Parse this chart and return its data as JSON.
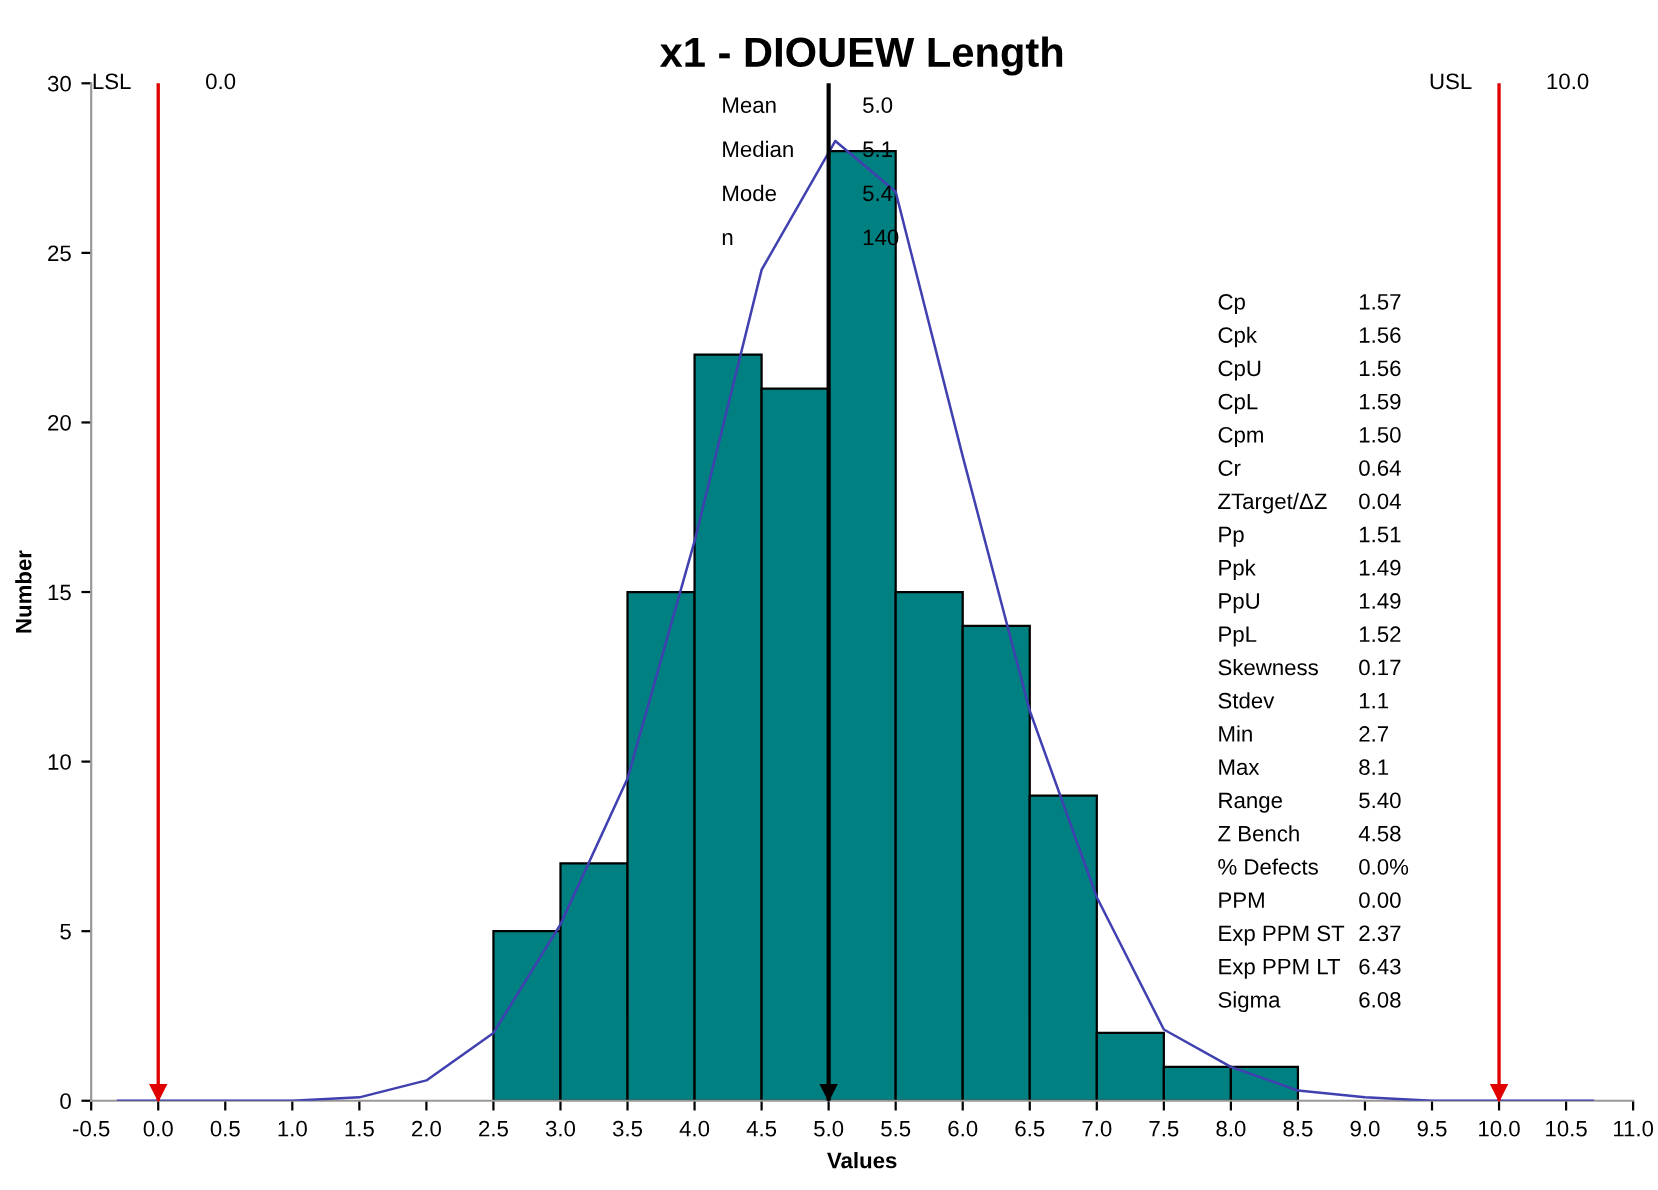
{
  "chart_data": {
    "type": "histogram",
    "title": "x1 - DIOUEW Length",
    "xlabel": "Values",
    "ylabel": "Number",
    "bins": [
      2.5,
      3.0,
      3.5,
      4.0,
      4.5,
      5.0,
      5.5,
      6.0,
      6.5,
      7.0,
      7.5,
      8.0,
      8.5
    ],
    "series": [
      {
        "color": "#008080",
        "values": [
          5,
          7,
          15,
          22,
          21,
          28,
          15,
          14,
          9,
          2,
          1,
          1
        ]
      },
      {
        "type": "line",
        "color": "#4040b0",
        "x": [
          -0.3,
          0.5,
          1.0,
          1.5,
          2.0,
          2.5,
          3.0,
          3.5,
          4.0,
          4.5,
          5.05,
          5.5,
          6.0,
          6.5,
          7.0,
          7.5,
          8.0,
          8.5,
          9.0,
          9.5,
          10.0,
          10.7
        ],
        "values": [
          0,
          0,
          0,
          0.1,
          0.6,
          2.0,
          5.2,
          9.5,
          16.5,
          24.5,
          28.3,
          26.8,
          19,
          11.5,
          6.0,
          2.1,
          1.0,
          0.3,
          0.1,
          0,
          0,
          0
        ]
      }
    ],
    "ref_lines": [
      {
        "axis": "x",
        "value": 0.0,
        "label": "LSL",
        "color": "#e00000"
      },
      {
        "axis": "x",
        "value": 10.0,
        "label": "USL",
        "color": "#e00000"
      },
      {
        "axis": "x",
        "value": 5.0,
        "color": "#000000"
      }
    ],
    "annotations": [
      "0.0",
      "10.0",
      "Mean 5.0",
      "Median 5.1",
      "Mode 5.4",
      "n 140",
      "Cp 1.57",
      "Cpk 1.56",
      "CpU 1.56",
      "CpL 1.59",
      "Cpm 1.50",
      "Cr 0.64",
      "ZTarget/ΔZ 0.04",
      "Pp 1.51",
      "Ppk 1.49",
      "PpU 1.49",
      "PpL 1.52",
      "Skewness 0.17",
      "Stdev 1.1",
      "Min 2.7",
      "Max 8.1",
      "Range 5.40",
      "Z Bench 4.58",
      "% Defects 0.0%",
      "PPM 0.00",
      "Exp PPM ST 2.37",
      "Exp PPM LT 6.43",
      "Sigma 6.08"
    ],
    "xlim": [
      -0.5,
      11.0
    ],
    "xticks": [
      {
        "value": -0.5,
        "label": "-0.5"
      },
      {
        "value": 0.0,
        "label": "0.0"
      },
      {
        "value": 0.5,
        "label": "0.5"
      },
      {
        "value": 1.0,
        "label": "1.0"
      },
      {
        "value": 1.5,
        "label": "1.5"
      },
      {
        "value": 2.0,
        "label": "2.0"
      },
      {
        "value": 2.5,
        "label": "2.5"
      },
      {
        "value": 3.0,
        "label": "3.0"
      },
      {
        "value": 3.5,
        "label": "3.5"
      },
      {
        "value": 4.0,
        "label": "4.0"
      },
      {
        "value": 4.5,
        "label": "4.5"
      },
      {
        "value": 5.0,
        "label": "5.0"
      },
      {
        "value": 5.5,
        "label": "5.5"
      },
      {
        "value": 6.0,
        "label": "6.0"
      },
      {
        "value": 6.5,
        "label": "6.5"
      },
      {
        "value": 7.0,
        "label": "7.0"
      },
      {
        "value": 7.5,
        "label": "7.5"
      },
      {
        "value": 8.0,
        "label": "8.0"
      },
      {
        "value": 8.5,
        "label": "8.5"
      },
      {
        "value": 9.0,
        "label": "9.0"
      },
      {
        "value": 9.5,
        "label": "9.5"
      },
      {
        "value": 10.0,
        "label": "10.0"
      },
      {
        "value": 10.5,
        "label": "10.5"
      },
      {
        "value": 11.0,
        "label": "11.0"
      }
    ],
    "ylim": [
      0,
      30
    ],
    "yticks": [
      0,
      5,
      10,
      15,
      20,
      25,
      30
    ],
    "grid": false
  }
}
